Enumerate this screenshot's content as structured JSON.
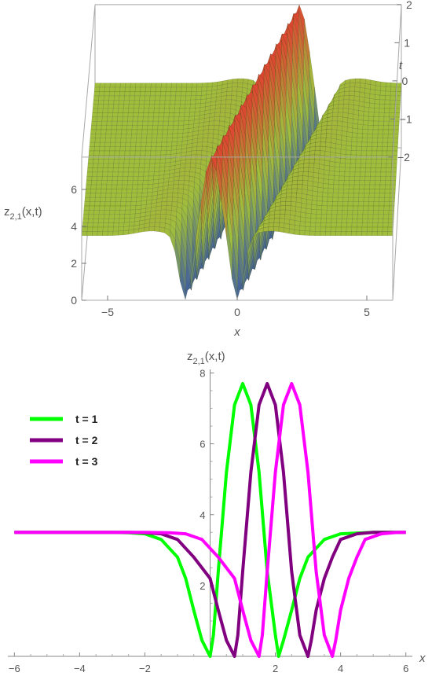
{
  "colors": {
    "surface_low": "#3b5ba8",
    "surface_mid": "#9fbf3c",
    "surface_high": "#e04030",
    "box_line": "#a8a8a8",
    "axis": "#555555"
  },
  "chart_data": [
    {
      "type": "surface",
      "xlabel": "x",
      "ylabel": "t",
      "zlabel": "z_{2,1}(x,t)",
      "zlabel_parts": {
        "base": "z",
        "sub": "2,1",
        "args": "(x,t)"
      },
      "x_range": [
        -6,
        6
      ],
      "t_range": [
        -2,
        2
      ],
      "z_range": [
        0,
        7.75
      ],
      "x_ticks": [
        {
          "value": -5,
          "label": "−5"
        },
        {
          "value": 0,
          "label": "0"
        },
        {
          "value": 5,
          "label": "5"
        }
      ],
      "t_ticks": [
        {
          "value": -2,
          "label": "−2"
        },
        {
          "value": -1,
          "label": "−1"
        },
        {
          "value": 0,
          "label": "0"
        },
        {
          "value": 1,
          "label": "1"
        },
        {
          "value": 2,
          "label": "2"
        }
      ],
      "z_ticks": [
        {
          "value": 0,
          "label": "0"
        },
        {
          "value": 2,
          "label": "2"
        },
        {
          "value": 4,
          "label": "4"
        },
        {
          "value": 6,
          "label": "6"
        }
      ],
      "baseline_z": 3.5,
      "peak_z": 7.75,
      "wave_speed": 0.75,
      "wave_offset": 0.5,
      "grid_lines_x": 24,
      "grid_lines_t": 18
    },
    {
      "type": "line",
      "xlabel": "x",
      "ylabel": "z_{2,1}(x,t)",
      "ylabel_parts": {
        "base": "z",
        "sub": "2,1",
        "args": "(x,t)"
      },
      "xlim": [
        -6.2,
        6.2
      ],
      "ylim": [
        0,
        8.1
      ],
      "x_ticks": [
        {
          "value": -6,
          "label": "−6"
        },
        {
          "value": -4,
          "label": "−4"
        },
        {
          "value": -2,
          "label": "−2"
        },
        {
          "value": 2,
          "label": "2"
        },
        {
          "value": 4,
          "label": "4"
        },
        {
          "value": 6,
          "label": "6"
        }
      ],
      "y_ticks": [
        {
          "value": 2,
          "label": "2"
        },
        {
          "value": 4,
          "label": "4"
        },
        {
          "value": 6,
          "label": "6"
        },
        {
          "value": 8,
          "label": "8"
        }
      ],
      "legend_position": "top-left",
      "series": [
        {
          "name": "t = 1",
          "color": "#00ff00",
          "x": [
            -6.0,
            -5.0,
            -4.0,
            -3.5,
            -3.0,
            -2.5,
            -2.0,
            -1.5,
            -1.0,
            -0.75,
            -0.5,
            -0.25,
            0.0,
            0.1,
            0.25,
            0.5,
            0.75,
            1.0,
            1.25,
            1.5,
            1.75,
            2.0,
            2.1,
            2.25,
            2.5,
            2.75,
            3.0,
            3.5,
            4.0,
            5.0,
            6.0
          ],
          "y": [
            3.5,
            3.5,
            3.5,
            3.5,
            3.5,
            3.49,
            3.46,
            3.3,
            2.8,
            2.2,
            1.3,
            0.45,
            0.0,
            0.6,
            2.4,
            5.2,
            7.1,
            7.7,
            7.1,
            5.2,
            2.4,
            0.6,
            0.0,
            0.45,
            1.3,
            2.2,
            2.8,
            3.3,
            3.46,
            3.5,
            3.5
          ]
        },
        {
          "name": "t = 2",
          "color": "#800080",
          "x": [
            -6.0,
            -5.0,
            -4.0,
            -3.0,
            -2.5,
            -2.0,
            -1.5,
            -1.0,
            -0.5,
            0.0,
            0.25,
            0.5,
            0.75,
            0.85,
            1.0,
            1.25,
            1.5,
            1.75,
            2.0,
            2.25,
            2.5,
            2.75,
            3.0,
            3.1,
            3.25,
            3.5,
            3.75,
            4.0,
            4.5,
            5.0,
            6.0
          ],
          "y": [
            3.5,
            3.5,
            3.5,
            3.5,
            3.5,
            3.49,
            3.46,
            3.3,
            2.8,
            2.2,
            1.3,
            0.45,
            0.0,
            0.6,
            2.4,
            5.2,
            7.1,
            7.7,
            7.1,
            5.2,
            2.4,
            0.6,
            0.0,
            0.45,
            1.3,
            2.2,
            2.8,
            3.3,
            3.46,
            3.5,
            3.5
          ]
        },
        {
          "name": "t = 3",
          "color": "#ff00ff",
          "x": [
            -6.0,
            -5.0,
            -4.0,
            -3.0,
            -2.0,
            -1.25,
            -0.75,
            -0.25,
            0.25,
            0.75,
            1.0,
            1.25,
            1.5,
            1.6,
            1.75,
            2.0,
            2.25,
            2.5,
            2.75,
            3.0,
            3.25,
            3.5,
            3.75,
            3.85,
            4.0,
            4.25,
            4.5,
            4.75,
            5.25,
            5.75,
            6.0
          ],
          "y": [
            3.5,
            3.5,
            3.5,
            3.5,
            3.5,
            3.49,
            3.46,
            3.3,
            2.8,
            2.2,
            1.3,
            0.45,
            0.0,
            0.6,
            2.4,
            5.2,
            7.1,
            7.7,
            7.1,
            5.2,
            2.4,
            0.6,
            0.0,
            0.45,
            1.3,
            2.2,
            2.8,
            3.3,
            3.46,
            3.5,
            3.5
          ]
        }
      ]
    }
  ]
}
